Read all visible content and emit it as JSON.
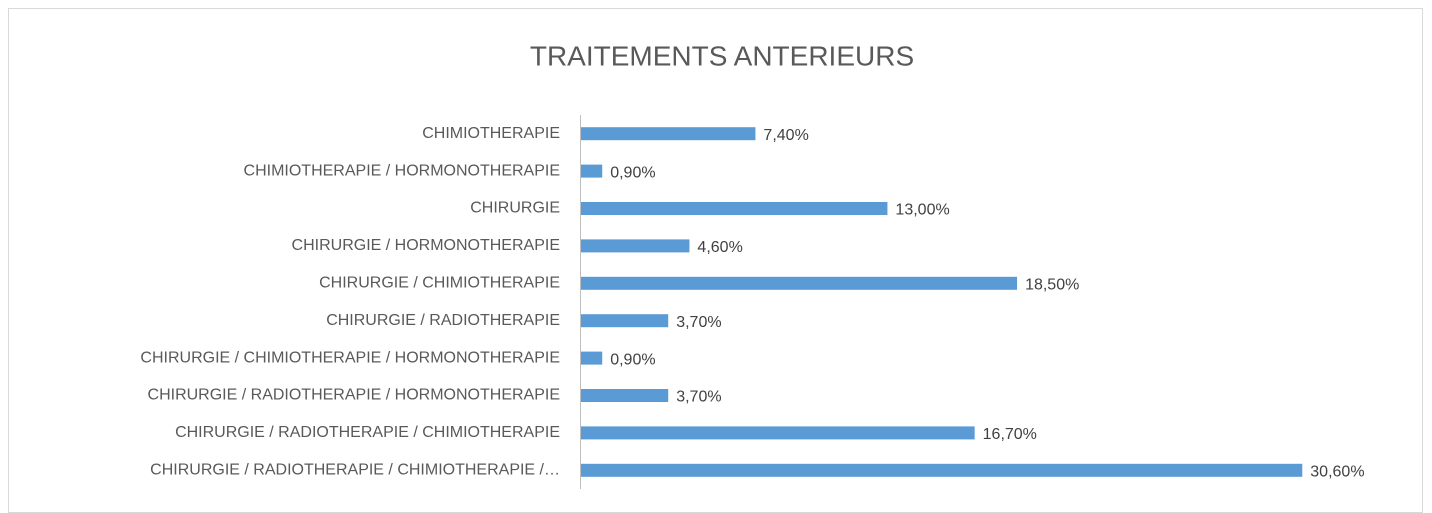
{
  "chart_data": {
    "type": "bar",
    "orientation": "horizontal",
    "title": "TRAITEMENTS ANTERIEURS",
    "categories": [
      "CHIMIOTHERAPIE",
      "CHIMIOTHERAPIE / HORMONOTHERAPIE",
      "CHIRURGIE",
      "CHIRURGIE / HORMONOTHERAPIE",
      "CHIRURGIE / CHIMIOTHERAPIE",
      "CHIRURGIE / RADIOTHERAPIE",
      "CHIRURGIE / CHIMIOTHERAPIE / HORMONOTHERAPIE",
      "CHIRURGIE / RADIOTHERAPIE / HORMONOTHERAPIE",
      "CHIRURGIE / RADIOTHERAPIE / CHIMIOTHERAPIE",
      "CHIRURGIE / RADIOTHERAPIE / CHIMIOTHERAPIE /…"
    ],
    "values": [
      7.4,
      0.9,
      13,
      4.6,
      18.5,
      3.7,
      0.9,
      3.7,
      16.7,
      30.6
    ],
    "value_labels": [
      "7,40%",
      "0,90%",
      "13,00%",
      "4,60%",
      "18,50%",
      "3,70%",
      "0,90%",
      "3,70%",
      "16,70%",
      "30,60%"
    ],
    "color": "#5b9bd5",
    "xlim": [
      0,
      35
    ]
  }
}
